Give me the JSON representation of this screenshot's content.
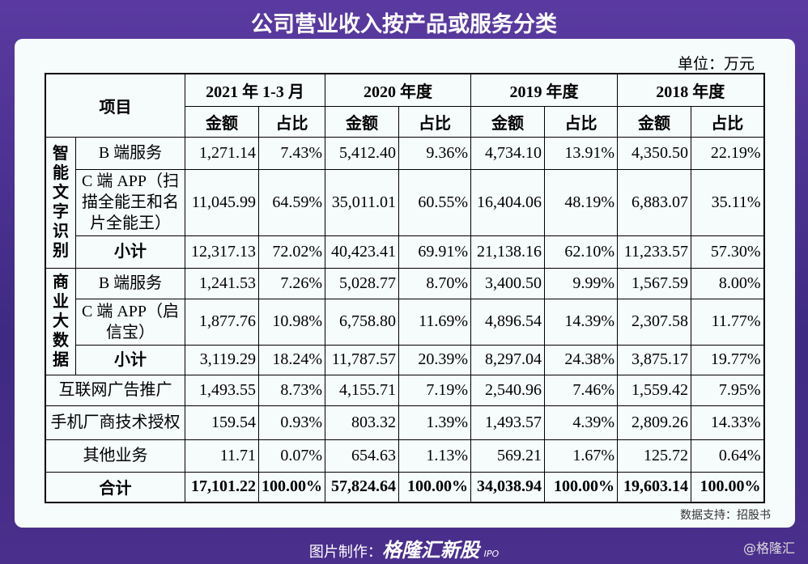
{
  "title": "公司营业收入按产品或服务分类",
  "unit": "单位：万元",
  "table": {
    "header": {
      "item": "项目",
      "periods": [
        "2021 年 1-3 月",
        "2020 年度",
        "2019 年度",
        "2018 年度"
      ],
      "subheaders": [
        "金额",
        "占比",
        "金额",
        "占比",
        "金额",
        "占比",
        "金额",
        "占比"
      ]
    },
    "groups": [
      {
        "name": "智能文字识别",
        "rows": [
          {
            "label": "B 端服务",
            "cells": [
              "1,271.14",
              "7.43%",
              "5,412.40",
              "9.36%",
              "4,734.10",
              "13.91%",
              "4,350.50",
              "22.19%"
            ]
          },
          {
            "label": "C 端 APP（扫描全能王和名片全能王）",
            "cells": [
              "11,045.99",
              "64.59%",
              "35,011.01",
              "60.55%",
              "16,404.06",
              "48.19%",
              "6,883.07",
              "35.11%"
            ]
          },
          {
            "label": "小计",
            "cells": [
              "12,317.13",
              "72.02%",
              "40,423.41",
              "69.91%",
              "21,138.16",
              "62.10%",
              "11,233.57",
              "57.30%"
            ]
          }
        ]
      },
      {
        "name": "商业大数据",
        "rows": [
          {
            "label": "B 端服务",
            "cells": [
              "1,241.53",
              "7.26%",
              "5,028.77",
              "8.70%",
              "3,400.50",
              "9.99%",
              "1,567.59",
              "8.00%"
            ]
          },
          {
            "label": "C 端 APP（启信宝）",
            "cells": [
              "1,877.76",
              "10.98%",
              "6,758.80",
              "11.69%",
              "4,896.54",
              "14.39%",
              "2,307.58",
              "11.77%"
            ]
          },
          {
            "label": "小计",
            "cells": [
              "3,119.29",
              "18.24%",
              "11,787.57",
              "20.39%",
              "8,297.04",
              "24.38%",
              "3,875.17",
              "19.77%"
            ]
          }
        ]
      }
    ],
    "rows": [
      {
        "label": "互联网广告推广",
        "cells": [
          "1,493.55",
          "8.73%",
          "4,155.71",
          "7.19%",
          "2,540.96",
          "7.46%",
          "1,559.42",
          "7.95%"
        ]
      },
      {
        "label": "手机厂商技术授权",
        "cells": [
          "159.54",
          "0.93%",
          "803.32",
          "1.39%",
          "1,493.57",
          "4.39%",
          "2,809.26",
          "14.33%"
        ]
      },
      {
        "label": "其他业务",
        "cells": [
          "11.71",
          "0.07%",
          "654.63",
          "1.13%",
          "569.21",
          "1.67%",
          "125.72",
          "0.64%"
        ]
      }
    ],
    "total": {
      "label": "合计",
      "cells": [
        "17,101.22",
        "100.00%",
        "57,824.64",
        "100.00%",
        "34,038.94",
        "100.00%",
        "19,603.14",
        "100.00%"
      ]
    }
  },
  "footer": {
    "source": "数据支持：招股书",
    "credit": "图片制作：",
    "brand": "格隆汇新股",
    "brand_sub": "IPO",
    "watermark": "@格隆汇"
  }
}
